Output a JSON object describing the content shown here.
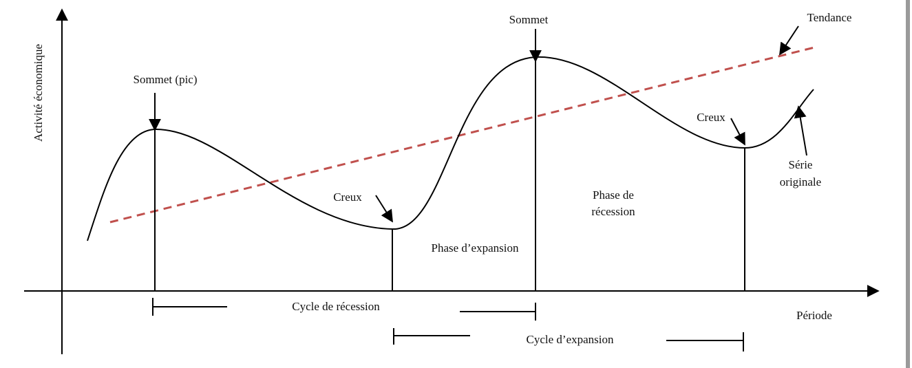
{
  "axes": {
    "y_label": "Activité économique",
    "x_label": "Période"
  },
  "labels": {
    "peak1": "Sommet (pic)",
    "peak2": "Sommet",
    "trend": "Tendance",
    "trough1": "Creux",
    "trough2": "Creux",
    "series": [
      "Série",
      "originale"
    ],
    "expansion_phase": "Phase d’expansion",
    "recession_phase": [
      "Phase de",
      "récession"
    ],
    "recession_cycle": "Cycle de récession",
    "expansion_cycle": "Cycle d’expansion"
  }
}
